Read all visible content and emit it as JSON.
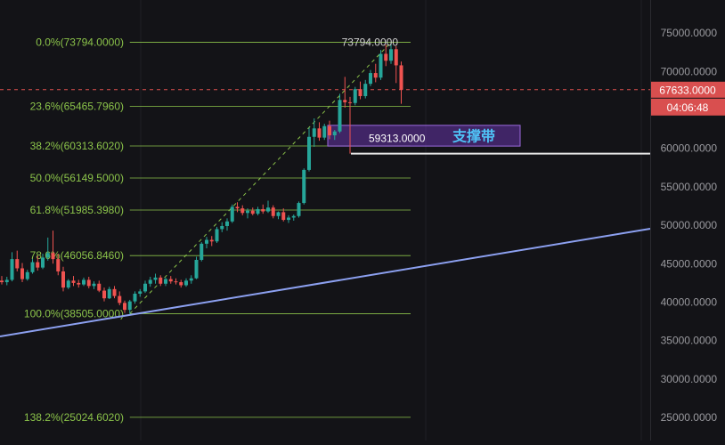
{
  "chart_data": {
    "type": "candlestick",
    "title": "",
    "y_axis": {
      "min": 22000,
      "max": 79300,
      "ticks": [
        "75000.0000",
        "70000.0000",
        "65000.0000",
        "60000.0000",
        "55000.0000",
        "50000.0000",
        "45000.0000",
        "40000.0000",
        "35000.0000",
        "30000.0000",
        "25000.0000"
      ],
      "tick_values": [
        75000,
        70000,
        65000,
        60000,
        55000,
        50000,
        45000,
        40000,
        35000,
        30000,
        25000
      ]
    },
    "last_price": {
      "label": "67633.0000",
      "value": 67633,
      "countdown": "04:06:48",
      "color": "#d94f4f"
    },
    "fibonacci": {
      "color": "#8bc34a",
      "levels": [
        {
          "label": "0.0%(73794.0000)",
          "value": 73794
        },
        {
          "label": "23.6%(65465.7960)",
          "value": 65465.796
        },
        {
          "label": "38.2%(60313.6020)",
          "value": 60313.602
        },
        {
          "label": "50.0%(56149.5000)",
          "value": 56149.5
        },
        {
          "label": "61.8%(51985.3980)",
          "value": 51985.398
        },
        {
          "label": "78.6%(46056.8460)",
          "value": 46056.846
        },
        {
          "label": "100.0%(38505.0000)",
          "value": 38505
        },
        {
          "label": "138.2%(25024.6020)",
          "value": 25024.602
        }
      ]
    },
    "annotations": {
      "high_label": "73794.0000",
      "high_value": 73794,
      "low_marker_label": "59313.0000",
      "low_marker_value": 59313,
      "support_zone": {
        "label": "支撑带",
        "top": 63000,
        "bottom": 60300
      },
      "trendline_color": "#8ca0f0"
    },
    "candles": [
      [
        42800,
        43400,
        42300,
        42600
      ],
      [
        42600,
        43300,
        42200,
        42900
      ],
      [
        42900,
        46500,
        42700,
        45600
      ],
      [
        45600,
        46700,
        44000,
        44400
      ],
      [
        44400,
        45100,
        42600,
        43000
      ],
      [
        43000,
        44200,
        42800,
        43900
      ],
      [
        43900,
        45600,
        43700,
        45200
      ],
      [
        45200,
        46000,
        44100,
        44500
      ],
      [
        44500,
        46300,
        44300,
        45800
      ],
      [
        45800,
        48400,
        45400,
        46400
      ],
      [
        46400,
        49300,
        45000,
        45600
      ],
      [
        45600,
        46300,
        43500,
        44000
      ],
      [
        44000,
        44600,
        41400,
        41900
      ],
      [
        41900,
        43000,
        41700,
        42800
      ],
      [
        42800,
        43400,
        42100,
        42500
      ],
      [
        42500,
        42900,
        41900,
        42300
      ],
      [
        42300,
        43200,
        42100,
        42900
      ],
      [
        42900,
        43300,
        41800,
        42100
      ],
      [
        42100,
        42700,
        41700,
        42400
      ],
      [
        42400,
        42800,
        41300,
        41500
      ],
      [
        41500,
        41900,
        40100,
        40500
      ],
      [
        40500,
        42000,
        40400,
        41700
      ],
      [
        41700,
        42100,
        40500,
        40800
      ],
      [
        40800,
        41400,
        39600,
        39900
      ],
      [
        39900,
        40200,
        38600,
        39000
      ],
      [
        39000,
        40300,
        38505,
        40100
      ],
      [
        40100,
        41400,
        39800,
        41100
      ],
      [
        41100,
        41700,
        40700,
        41400
      ],
      [
        41400,
        42800,
        41200,
        42400
      ],
      [
        42400,
        43300,
        42000,
        42900
      ],
      [
        42900,
        43700,
        42400,
        43200
      ],
      [
        43200,
        43500,
        42100,
        42400
      ],
      [
        42400,
        43200,
        42100,
        43000
      ],
      [
        43000,
        43400,
        42400,
        42700
      ],
      [
        42700,
        43100,
        42300,
        42600
      ],
      [
        42600,
        42900,
        41900,
        42200
      ],
      [
        42200,
        43100,
        42000,
        42800
      ],
      [
        42800,
        43500,
        42400,
        43100
      ],
      [
        43100,
        45900,
        43000,
        45500
      ],
      [
        45500,
        47800,
        45300,
        47600
      ],
      [
        47600,
        48500,
        47000,
        48100
      ],
      [
        48100,
        48600,
        47300,
        47900
      ],
      [
        47900,
        49800,
        47700,
        49500
      ],
      [
        49500,
        50400,
        49100,
        49900
      ],
      [
        49900,
        50900,
        49300,
        50500
      ],
      [
        50500,
        52700,
        50300,
        52400
      ],
      [
        52400,
        53000,
        51700,
        52200
      ],
      [
        52200,
        52600,
        51300,
        51600
      ],
      [
        51600,
        52200,
        50900,
        51900
      ],
      [
        51900,
        52300,
        51300,
        51500
      ],
      [
        51500,
        52400,
        51300,
        52100
      ],
      [
        52100,
        52700,
        51500,
        51800
      ],
      [
        51800,
        53200,
        51600,
        52300
      ],
      [
        52300,
        52600,
        50900,
        51200
      ],
      [
        51200,
        51800,
        50800,
        51700
      ],
      [
        51700,
        52200,
        50500,
        50700
      ],
      [
        50700,
        51300,
        50300,
        51000
      ],
      [
        51000,
        51400,
        50600,
        51200
      ],
      [
        51200,
        53100,
        51000,
        52900
      ],
      [
        52900,
        57400,
        52700,
        57200
      ],
      [
        57200,
        62700,
        57000,
        61500
      ],
      [
        61500,
        63900,
        60200,
        62600
      ],
      [
        62600,
        63400,
        61000,
        61400
      ],
      [
        61400,
        63200,
        61100,
        62900
      ],
      [
        62900,
        63600,
        61200,
        61700
      ],
      [
        61700,
        62400,
        61100,
        62200
      ],
      [
        62200,
        67100,
        62000,
        66300
      ],
      [
        66300,
        69300,
        65300,
        66000
      ],
      [
        66000,
        66700,
        59313,
        65900
      ],
      [
        65900,
        68000,
        65600,
        67700
      ],
      [
        67700,
        68700,
        66400,
        66800
      ],
      [
        66800,
        68900,
        66500,
        68400
      ],
      [
        68400,
        70200,
        68100,
        69800
      ],
      [
        69800,
        71000,
        68600,
        69200
      ],
      [
        69200,
        72800,
        68900,
        72300
      ],
      [
        72300,
        73500,
        70700,
        71400
      ],
      [
        71400,
        73794,
        71000,
        72900
      ],
      [
        72900,
        73300,
        68500,
        70800
      ],
      [
        70800,
        71300,
        65800,
        67633
      ]
    ]
  }
}
